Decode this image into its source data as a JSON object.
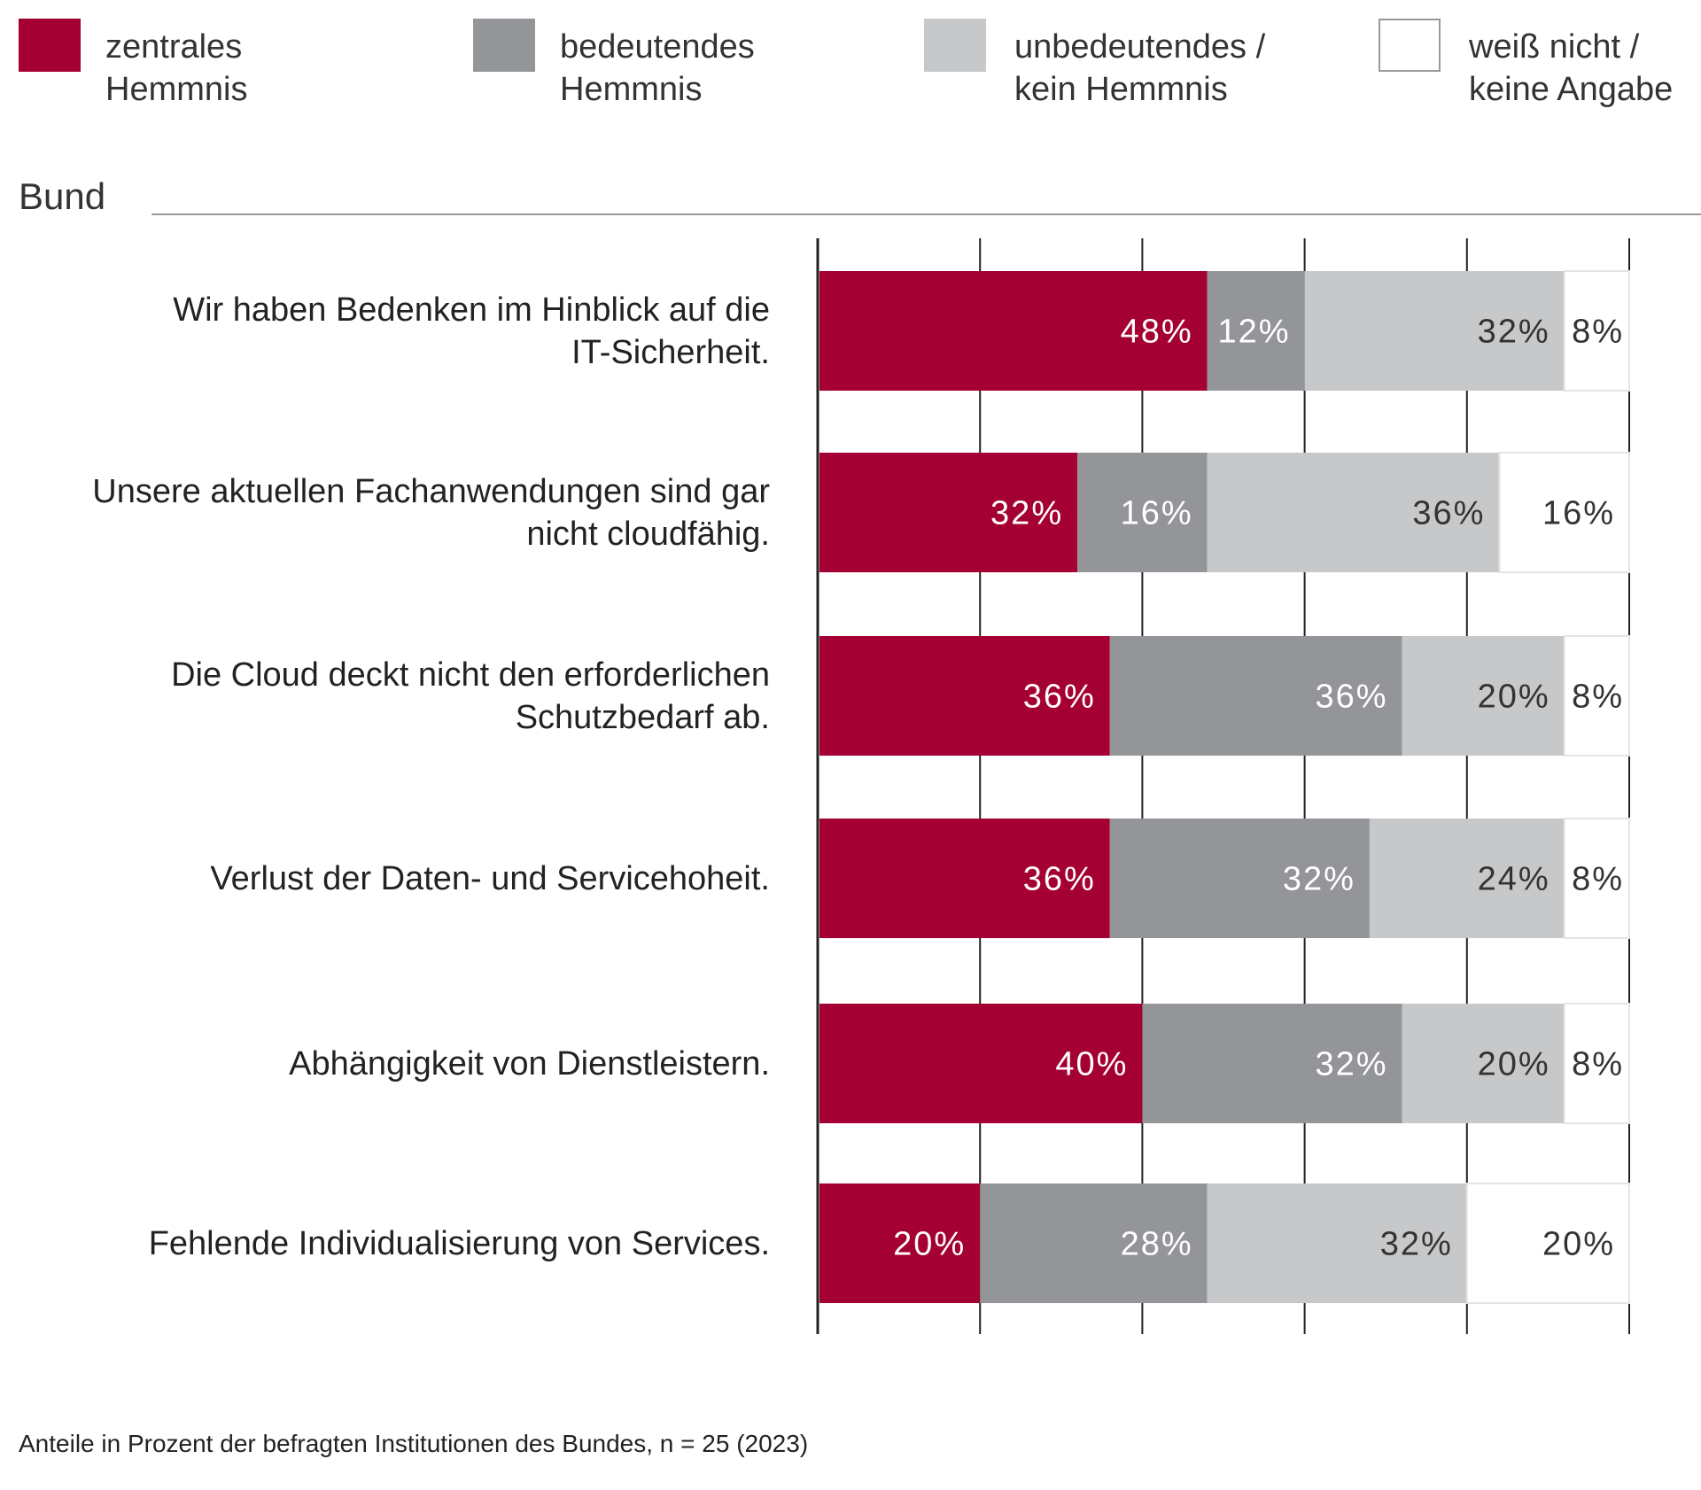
{
  "legend": [
    {
      "label": "zentrales\nHemmnis",
      "color": "#a50034"
    },
    {
      "label": "bedeutendes\nHemmnis",
      "color": "#939598"
    },
    {
      "label": "unbedeutendes /\nkein Hemmnis",
      "color": "#c7c8ca"
    },
    {
      "label": "weiß nicht /\nkeine Angabe",
      "color": "#ffffff"
    }
  ],
  "section_title": "Bund",
  "footnote": "Anteile in Prozent der befragten Institutionen des Bundes, n = 25 (2023)",
  "chart_data": {
    "type": "bar",
    "orientation": "horizontal",
    "stacked": true,
    "xlim": [
      0,
      100
    ],
    "xticks": [
      0,
      20,
      40,
      60,
      80,
      100
    ],
    "grid": true,
    "legend_position": "top",
    "unit": "%",
    "categories": [
      "Wir haben Bedenken im Hinblick auf die\nIT-Sicherheit.",
      "Unsere aktuellen Fachanwendungen sind gar\nnicht cloudfähig.",
      "Die Cloud deckt nicht den erforderlichen\nSchutzbedarf ab.",
      "Verlust der Daten- und Servicehoheit.",
      "Abhängigkeit von Dienstleistern.",
      "Fehlende Individualisierung von Services."
    ],
    "series": [
      {
        "name": "zentrales Hemmnis",
        "color": "#a50034",
        "label_color": "#ffffff",
        "values": [
          48,
          32,
          36,
          36,
          40,
          20
        ]
      },
      {
        "name": "bedeutendes Hemmnis",
        "color": "#939598",
        "label_color": "#ffffff",
        "values": [
          12,
          16,
          36,
          32,
          32,
          28
        ]
      },
      {
        "name": "unbedeutendes / kein Hemmnis",
        "color": "#c7c8ca",
        "label_color": "#333333",
        "values": [
          32,
          36,
          20,
          24,
          20,
          32
        ]
      },
      {
        "name": "weiß nicht / keine Angabe",
        "color": "#ffffff",
        "label_color": "#333333",
        "values": [
          8,
          16,
          8,
          8,
          8,
          20
        ]
      }
    ]
  }
}
